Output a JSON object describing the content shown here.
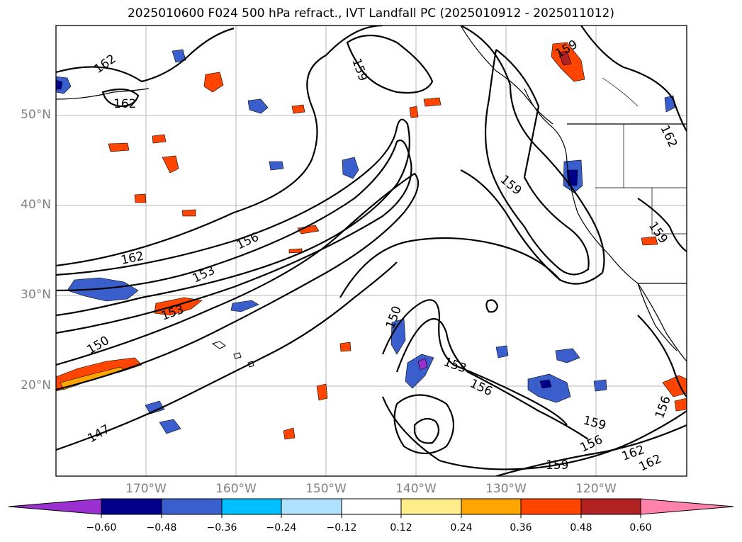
{
  "title": "2025010600 F024 500 hPa refract., IVT Landfall PC (2025010912 - 2025011012)",
  "lat_labels": [
    "50°N",
    "40°N",
    "30°N",
    "20°N"
  ],
  "lon_labels": [
    "170°W",
    "160°W",
    "150°W",
    "140°W",
    "130°W",
    "120°W"
  ],
  "colorbar": {
    "colors": [
      "#9b30d0",
      "#00008b",
      "#3a5fcd",
      "#00bfff",
      "#b0e2ff",
      "#ffffff",
      "#ffec8b",
      "#ffa500",
      "#ff4500",
      "#b22222",
      "#ff82ab"
    ],
    "levels": [
      "−0.60",
      "−0.48",
      "−0.36",
      "−0.24",
      "−0.12",
      "0.12",
      "0.24",
      "0.36",
      "0.48",
      "0.60"
    ]
  },
  "contour_labels": [
    "162",
    "162",
    "159",
    "159",
    "162",
    "159",
    "159",
    "162",
    "156",
    "153",
    "153",
    "150",
    "150",
    "147",
    "153",
    "156",
    "159",
    "156",
    "159",
    "162",
    "162",
    "156"
  ]
}
